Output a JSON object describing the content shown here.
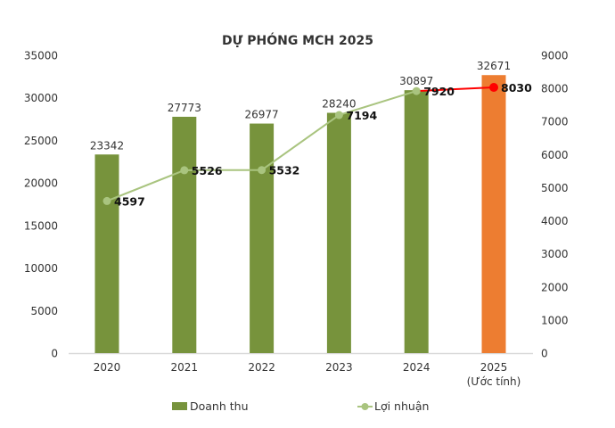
{
  "chart_data": {
    "type": "bar+line",
    "title": "DỰ PHÓNG MCH 2025",
    "categories": [
      "2020",
      "2021",
      "2022",
      "2023",
      "2024",
      "2025"
    ],
    "category_sublabels": [
      "",
      "",
      "",
      "",
      "",
      "(Ước tính)"
    ],
    "series": [
      {
        "name": "Doanh thu",
        "type": "bar",
        "axis": "left",
        "values": [
          23342,
          27773,
          26977,
          28240,
          30897,
          32671
        ],
        "color": "#77933C",
        "highlight_color": "#ED7D31",
        "highlight_index": 5
      },
      {
        "name": "Lợi nhuận",
        "type": "line",
        "axis": "right",
        "values": [
          4597,
          5526,
          5532,
          7194,
          7920,
          8030
        ],
        "color": "#A9C47F",
        "forecast_color": "#FF0000"
      }
    ],
    "left_axis": {
      "ylim": [
        0,
        35000
      ],
      "ticks": [
        0,
        5000,
        10000,
        15000,
        20000,
        25000,
        30000,
        35000
      ]
    },
    "right_axis": {
      "ylim": [
        0,
        9000
      ],
      "ticks": [
        0,
        1000,
        2000,
        3000,
        4000,
        5000,
        6000,
        7000,
        8000,
        9000
      ]
    },
    "grid": false,
    "legend": "bottom"
  }
}
